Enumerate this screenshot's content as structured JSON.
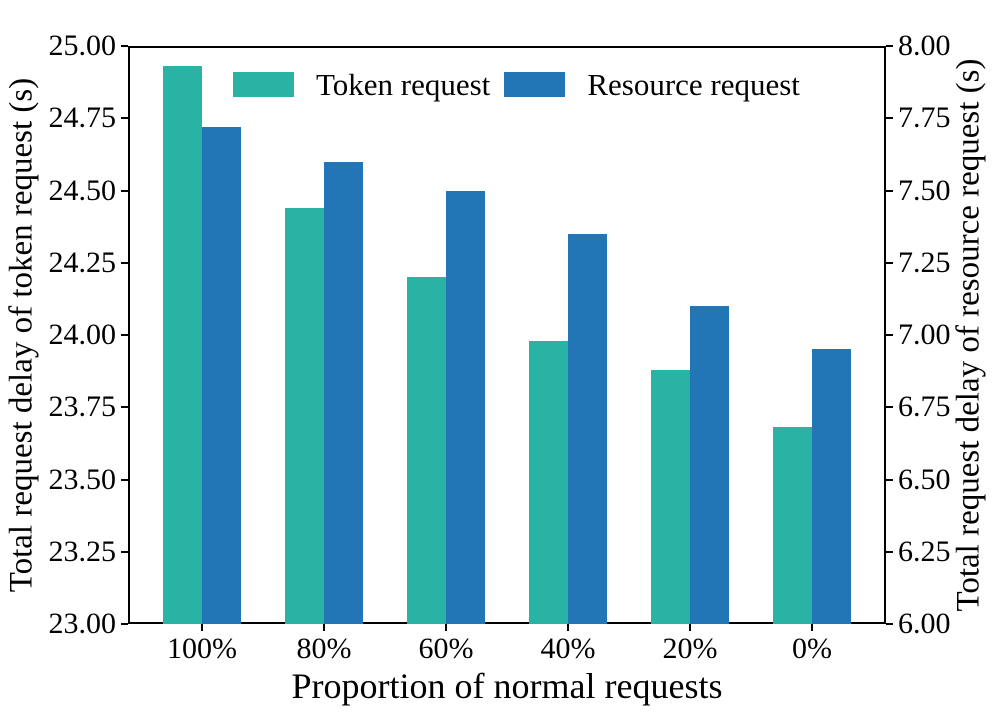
{
  "chart_data": {
    "type": "bar",
    "title": "",
    "categories": [
      "100%",
      "80%",
      "60%",
      "40%",
      "20%",
      "0%"
    ],
    "series": [
      {
        "name": "Token request",
        "axis": "left",
        "color": "#29b3a4",
        "values": [
          24.93,
          24.44,
          24.2,
          23.98,
          23.88,
          23.68
        ]
      },
      {
        "name": "Resource request",
        "axis": "right",
        "color": "#2376b6",
        "values": [
          7.72,
          7.6,
          7.5,
          7.35,
          7.1,
          6.95
        ]
      }
    ],
    "xlabel": "Proportion of normal requests",
    "left_axis": {
      "label": "Total request delay of token request (s)",
      "min": 23.0,
      "max": 25.0,
      "step": 0.25,
      "ticks": [
        "25.00",
        "24.75",
        "24.50",
        "24.25",
        "24.00",
        "23.75",
        "23.50",
        "23.25",
        "23.00"
      ]
    },
    "right_axis": {
      "label": "Total request delay of resource request (s)",
      "min": 6.0,
      "max": 8.0,
      "step": 0.25,
      "ticks": [
        "8.00",
        "7.75",
        "7.50",
        "7.25",
        "7.00",
        "6.75",
        "6.50",
        "6.25",
        "6.00"
      ]
    },
    "legend": {
      "position": "top-center-inside",
      "entries": [
        "Token request",
        "Resource request"
      ]
    },
    "grid": false,
    "text_color": "#000000",
    "background_color": "#ffffff"
  }
}
